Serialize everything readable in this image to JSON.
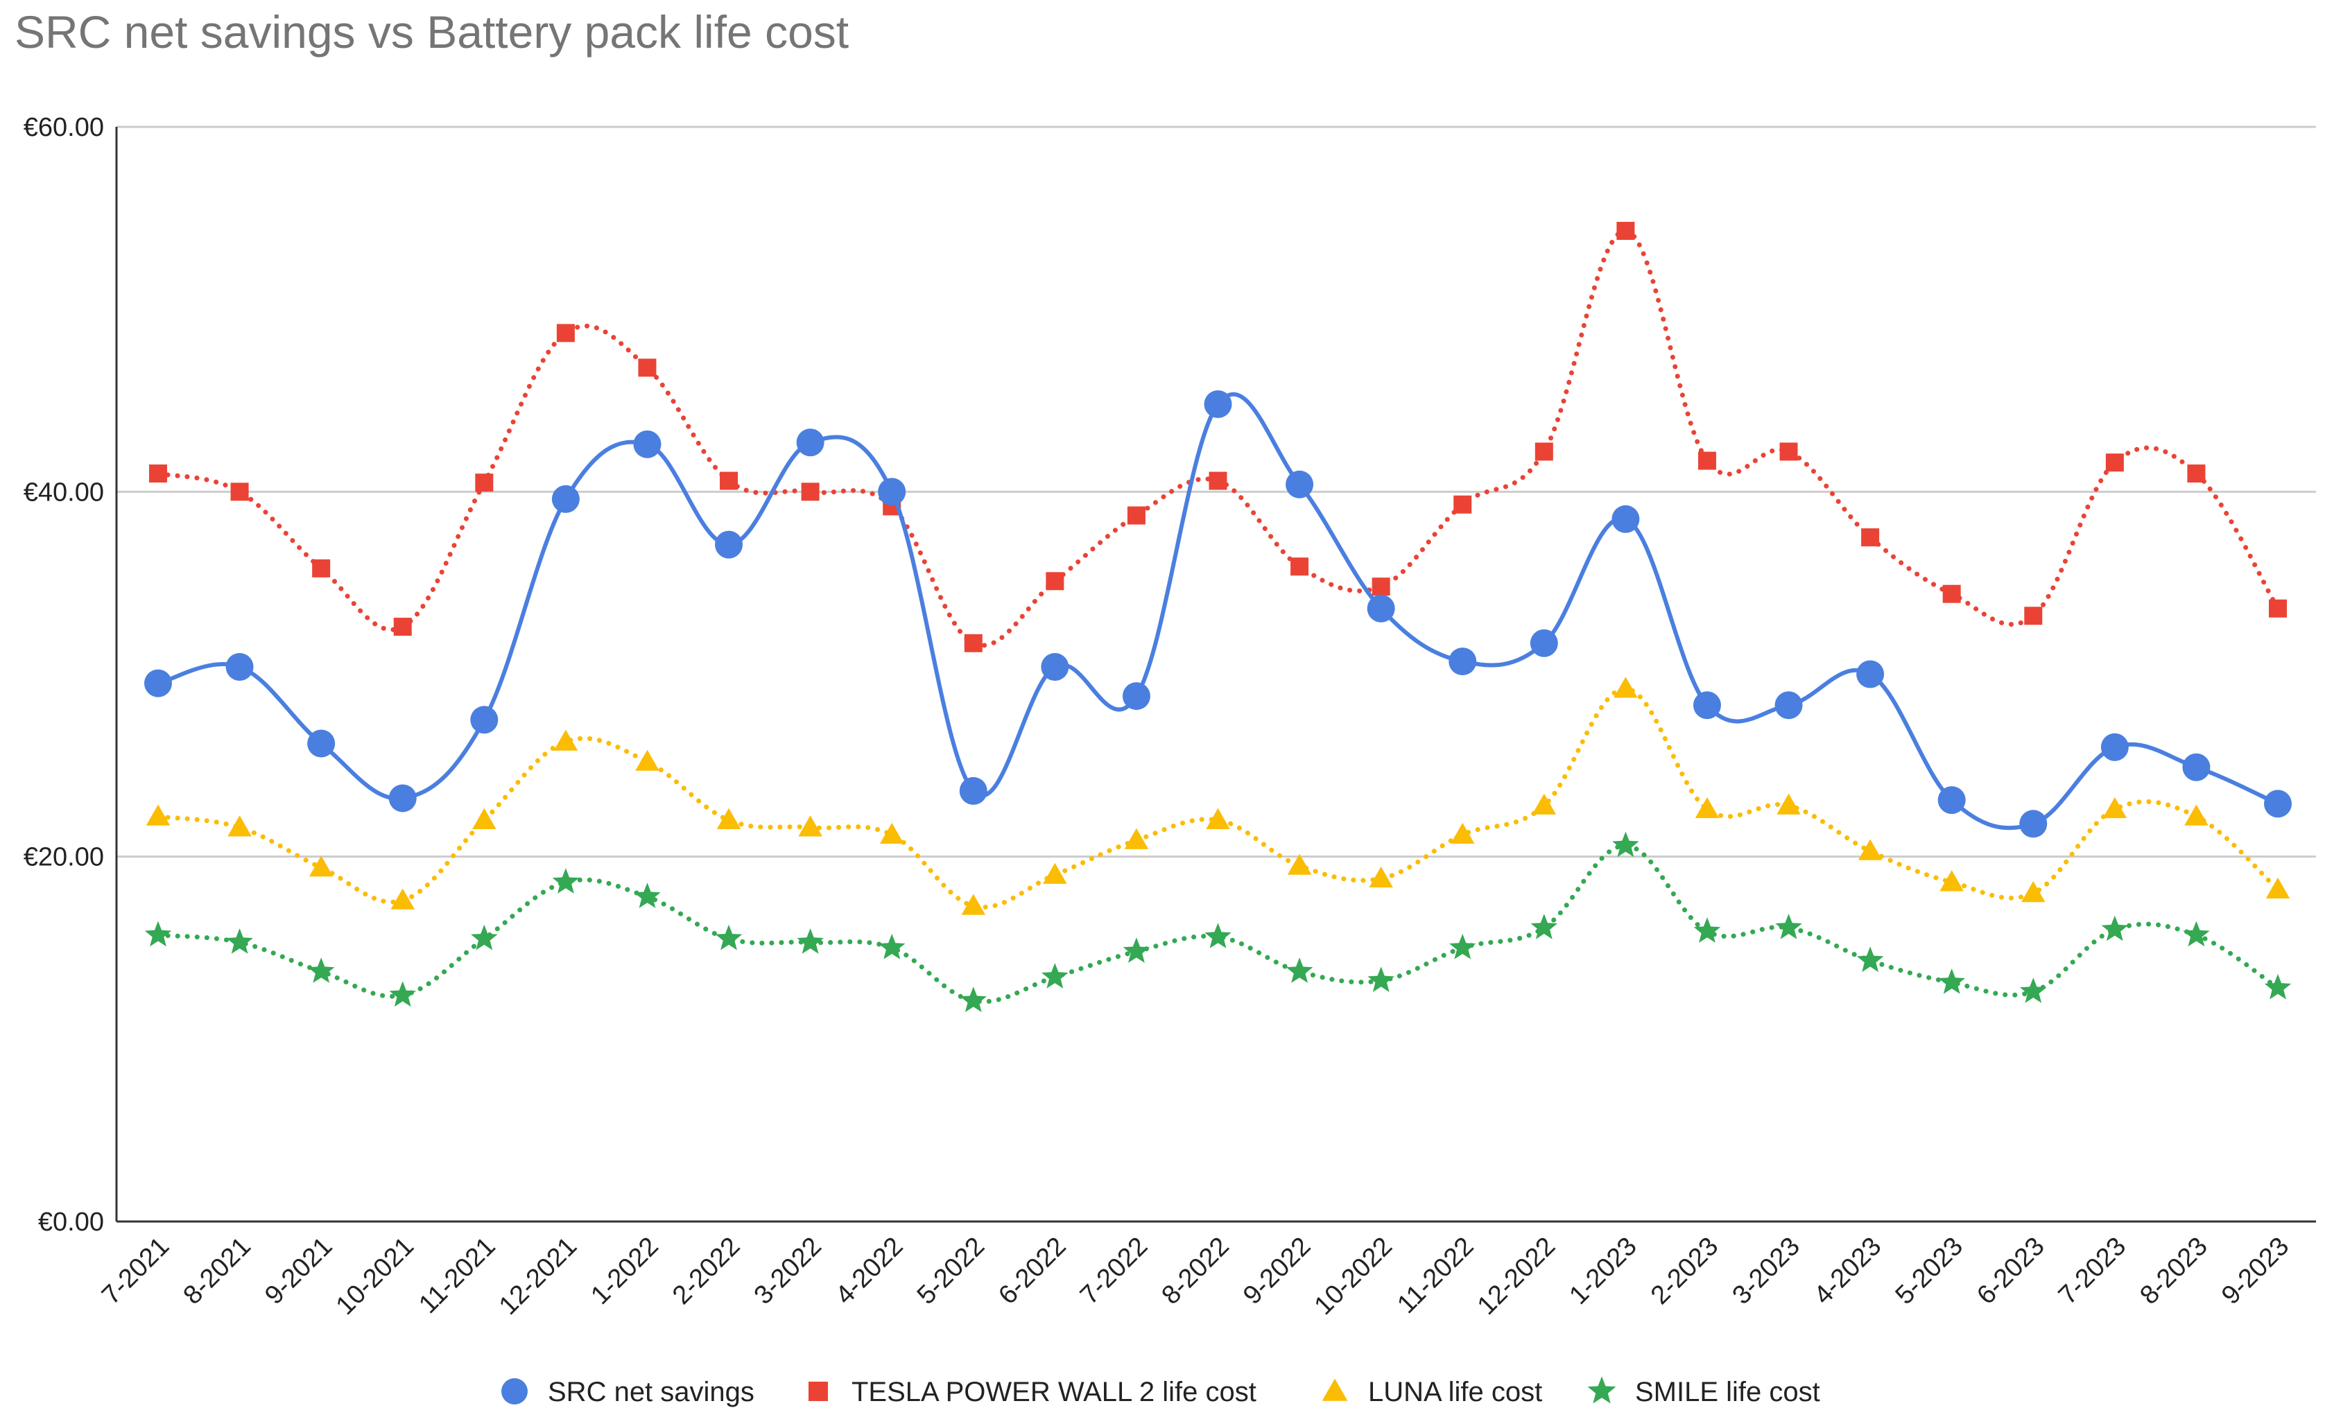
{
  "chart_data": {
    "type": "line",
    "title": "SRC net savings vs Battery pack life cost",
    "xlabel": "",
    "ylabel": "",
    "ylim": [
      0,
      60
    ],
    "y_ticks": [
      "€0.00",
      "€20.00",
      "€40.00",
      "€60.00"
    ],
    "y_tick_values": [
      0,
      20,
      40,
      60
    ],
    "grid": true,
    "legend_position": "bottom",
    "categories": [
      "7-2021",
      "8-2021",
      "9-2021",
      "10-2021",
      "11-2021",
      "12-2021",
      "1-2022",
      "2-2022",
      "3-2022",
      "4-2022",
      "5-2022",
      "6-2022",
      "7-2022",
      "8-2022",
      "9-2022",
      "10-2022",
      "11-2022",
      "12-2022",
      "1-2023",
      "2-2023",
      "3-2023",
      "4-2023",
      "5-2023",
      "6-2023",
      "7-2023",
      "8-2023",
      "9-2023"
    ],
    "series": [
      {
        "name": "SRC net savings",
        "color": "#4a7fe0",
        "marker": "circle",
        "line_style": "solid",
        "values": [
          29.5,
          30.4,
          26.2,
          23.2,
          27.5,
          39.6,
          42.6,
          37.1,
          42.7,
          40.0,
          23.6,
          30.4,
          28.8,
          44.8,
          40.4,
          33.6,
          30.7,
          31.7,
          38.5,
          28.3,
          28.3,
          30.0,
          23.1,
          21.8,
          26.0,
          24.9,
          22.9
        ]
      },
      {
        "name": "TESLA POWER WALL 2 life cost",
        "color": "#ea4335",
        "marker": "square",
        "line_style": "dotted",
        "values": [
          41.0,
          40.0,
          35.8,
          32.6,
          40.5,
          48.7,
          46.8,
          40.6,
          40.0,
          39.2,
          31.7,
          35.1,
          38.7,
          40.6,
          35.9,
          34.8,
          39.3,
          42.2,
          54.3,
          41.7,
          42.2,
          37.5,
          34.4,
          33.2,
          41.6,
          41.0,
          33.6
        ]
      },
      {
        "name": "LUNA life cost",
        "color": "#fbbc04",
        "marker": "triangle",
        "line_style": "dotted",
        "values": [
          22.2,
          21.6,
          19.4,
          17.6,
          22.0,
          26.3,
          25.2,
          22.0,
          21.6,
          21.2,
          17.3,
          19.0,
          20.9,
          22.0,
          19.5,
          18.8,
          21.2,
          22.8,
          29.2,
          22.6,
          22.8,
          20.3,
          18.6,
          18.0,
          22.6,
          22.2,
          18.2
        ]
      },
      {
        "name": "SMILE life cost",
        "color": "#34a853",
        "marker": "star",
        "line_style": "dotted",
        "values": [
          15.7,
          15.3,
          13.7,
          12.4,
          15.5,
          18.6,
          17.8,
          15.5,
          15.3,
          15.0,
          12.1,
          13.4,
          14.8,
          15.6,
          13.7,
          13.2,
          15.0,
          16.1,
          20.6,
          15.9,
          16.1,
          14.3,
          13.1,
          12.6,
          16.0,
          15.7,
          12.8
        ]
      }
    ]
  }
}
